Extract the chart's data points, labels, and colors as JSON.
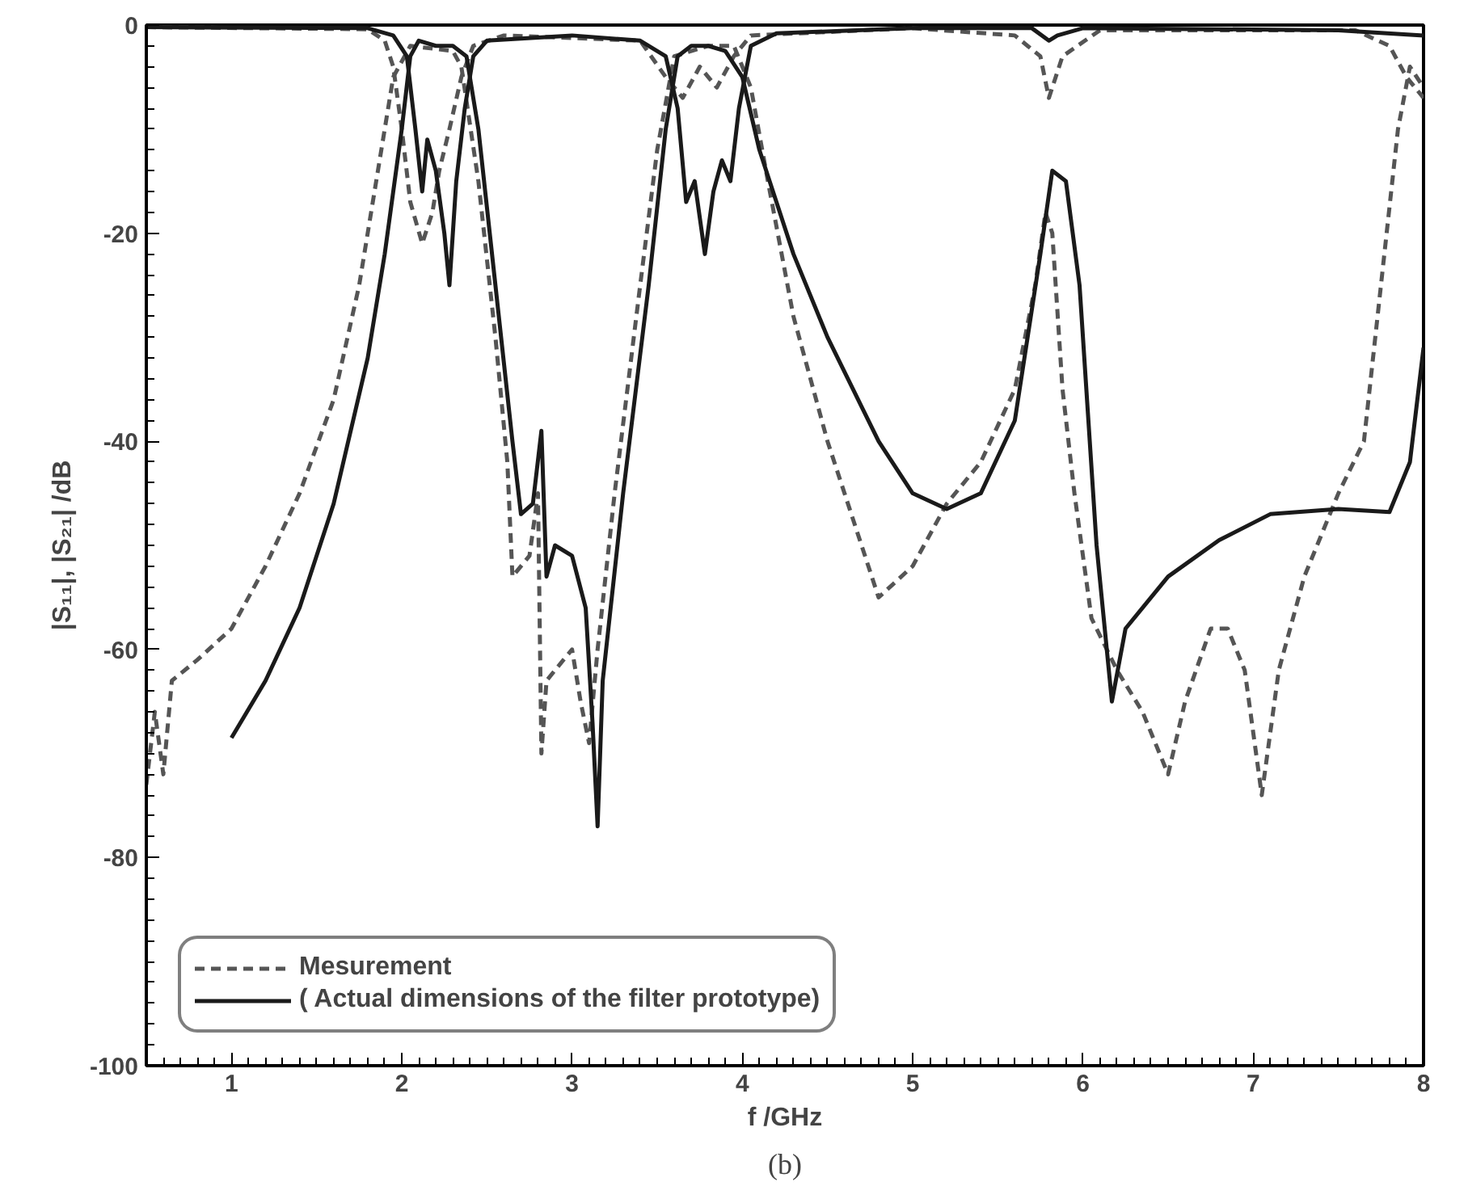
{
  "chart_data": {
    "type": "line",
    "xlabel": "f /GHz",
    "ylabel": "|S₁₁|, |S₂₁| /dB",
    "annotations": [
      "(b)"
    ],
    "xlim": [
      0.5,
      8
    ],
    "ylim": [
      -100,
      0
    ],
    "xticks": [
      1,
      2,
      3,
      4,
      5,
      6,
      7,
      8
    ],
    "yticks": [
      -100,
      -80,
      -60,
      -40,
      -20,
      0
    ],
    "grid": false,
    "legend": "bottom left",
    "marker": "none",
    "series": [
      {
        "name": "Mesurement",
        "color": "#555555",
        "line_style": "dashed",
        "x": [
          0.5,
          0.55,
          0.6,
          0.65,
          0.8,
          1.0,
          1.2,
          1.4,
          1.6,
          1.75,
          1.85,
          1.95,
          2.05,
          2.3,
          2.35,
          2.45,
          2.55,
          2.62,
          2.65,
          2.75,
          2.8,
          2.82,
          2.85,
          2.95,
          3.0,
          3.05,
          3.1,
          3.15,
          3.25,
          3.4,
          3.5,
          3.6,
          3.8,
          3.95,
          4.05,
          4.15,
          4.3,
          4.5,
          4.7,
          4.8,
          5.0,
          5.2,
          5.4,
          5.6,
          5.72,
          5.78,
          5.82,
          5.88,
          5.95,
          6.05,
          6.2,
          6.35,
          6.5,
          6.6,
          6.75,
          6.85,
          6.95,
          7.05,
          7.15,
          7.3,
          7.5,
          7.65,
          7.75,
          7.85,
          7.92,
          8.0
        ],
        "values": [
          -73,
          -66,
          -72,
          -63,
          -61,
          -58,
          -52,
          -45,
          -36,
          -25,
          -15,
          -5,
          -2,
          -2.5,
          -4,
          -15,
          -30,
          -42,
          -53,
          -51,
          -45,
          -70,
          -63,
          -61,
          -60,
          -65,
          -69,
          -60,
          -45,
          -25,
          -12,
          -3,
          -2,
          -2,
          -6,
          -15,
          -28,
          -40,
          -50,
          -55,
          -52,
          -46,
          -42,
          -35,
          -25,
          -18,
          -20,
          -35,
          -45,
          -57,
          -62,
          -66,
          -72,
          -65,
          -58,
          -58,
          -62,
          -74,
          -62,
          -53,
          -45,
          -40,
          -25,
          -10,
          -4,
          -6
        ]
      },
      {
        "color": "#555555",
        "line_style": "dashed",
        "x": [
          0.5,
          1.8,
          1.9,
          1.95,
          2.0,
          2.05,
          2.12,
          2.18,
          2.22,
          2.28,
          2.35,
          2.42,
          2.6,
          3.4,
          3.55,
          3.65,
          3.75,
          3.85,
          3.95,
          4.05,
          5.0,
          5.6,
          5.75,
          5.8,
          5.88,
          6.1,
          7.6,
          7.8,
          7.9,
          8.0
        ],
        "values": [
          -0.2,
          -0.4,
          -1.5,
          -4,
          -10,
          -17,
          -21,
          -18,
          -14,
          -10,
          -5,
          -2,
          -1,
          -1.5,
          -5,
          -7,
          -4,
          -6,
          -3,
          -1,
          -0.3,
          -1,
          -3,
          -7,
          -3,
          -0.5,
          -0.5,
          -2,
          -5,
          -7
        ]
      },
      {
        "name": "( Actual dimensions of the filter prototype)",
        "color": "#1a1a1a",
        "line_style": "solid",
        "x": [
          1,
          1.2,
          1.4,
          1.6,
          1.8,
          1.9,
          2.0,
          2.05,
          2.1,
          2.2,
          2.3,
          2.38,
          2.45,
          2.55,
          2.65,
          2.7,
          2.77,
          2.82,
          2.85,
          2.9,
          3.0,
          3.08,
          3.12,
          3.15,
          3.18,
          3.3,
          3.45,
          3.55,
          3.62,
          3.7,
          3.8,
          3.9,
          4.0,
          4.1,
          4.3,
          4.5,
          4.8,
          5.0,
          5.2,
          5.4,
          5.6,
          5.75,
          5.82,
          5.9,
          5.98,
          6.08,
          6.17,
          6.25,
          6.5,
          6.8,
          7.1,
          7.5,
          7.8,
          7.92,
          8.0
        ],
        "values": [
          -68.5,
          -63,
          -56,
          -46,
          -32,
          -22,
          -10,
          -3,
          -1.5,
          -2,
          -2,
          -3,
          -10,
          -25,
          -40,
          -47,
          -46,
          -39,
          -53,
          -50,
          -51,
          -56,
          -67,
          -77,
          -63,
          -45,
          -25,
          -10,
          -3,
          -2,
          -2,
          -2.5,
          -5,
          -12,
          -22,
          -30,
          -40,
          -45,
          -46.5,
          -45,
          -38,
          -22,
          -14,
          -15,
          -25,
          -50,
          -65,
          -58,
          -53,
          -49.5,
          -47,
          -46.5,
          -46.8,
          -42,
          -31
        ]
      },
      {
        "color": "#1a1a1a",
        "line_style": "solid",
        "x": [
          0.5,
          1.8,
          1.95,
          2.03,
          2.08,
          2.12,
          2.15,
          2.2,
          2.25,
          2.28,
          2.32,
          2.37,
          2.42,
          2.5,
          3.0,
          3.4,
          3.55,
          3.62,
          3.67,
          3.72,
          3.78,
          3.83,
          3.88,
          3.93,
          3.98,
          4.05,
          4.2,
          5.0,
          5.7,
          5.8,
          5.85,
          6.0,
          7.5,
          8.0
        ],
        "values": [
          -0.2,
          -0.3,
          -1,
          -3,
          -10,
          -16,
          -11,
          -14,
          -20,
          -25,
          -15,
          -8,
          -3,
          -1.5,
          -1,
          -1.5,
          -3,
          -8,
          -17,
          -15,
          -22,
          -16,
          -13,
          -15,
          -8,
          -2,
          -0.8,
          -0.3,
          -0.3,
          -1.5,
          -1,
          -0.3,
          -0.5,
          -1
        ]
      }
    ]
  }
}
